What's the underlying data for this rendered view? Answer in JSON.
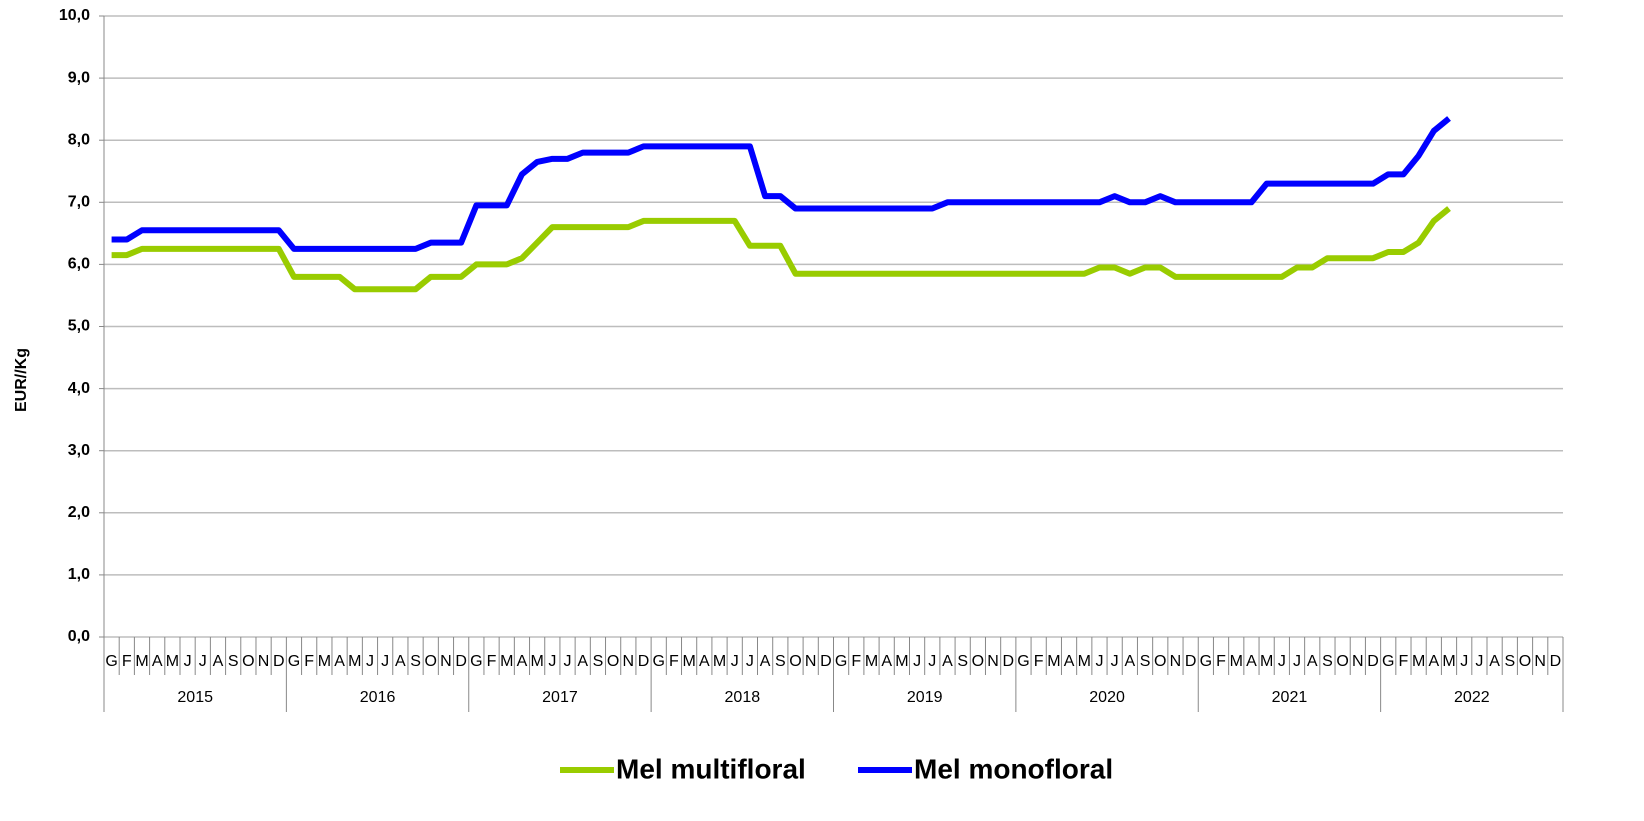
{
  "chart_data": {
    "type": "line",
    "y_label": "EUR//Kg",
    "categories": [
      "G",
      "F",
      "M",
      "A",
      "M",
      "J",
      "J",
      "A",
      "S",
      "O",
      "N",
      "D",
      "G",
      "F",
      "M",
      "A",
      "M",
      "J",
      "J",
      "A",
      "S",
      "O",
      "N",
      "D",
      "G",
      "F",
      "M",
      "A",
      "M",
      "J",
      "J",
      "A",
      "S",
      "O",
      "N",
      "D",
      "G",
      "F",
      "M",
      "A",
      "M",
      "J",
      "J",
      "A",
      "S",
      "O",
      "N",
      "D",
      "G",
      "F",
      "M",
      "A",
      "M",
      "J",
      "J",
      "A",
      "S",
      "O",
      "N",
      "D",
      "G",
      "F",
      "M",
      "A",
      "M",
      "J",
      "J",
      "A",
      "S",
      "O",
      "N",
      "D",
      "G",
      "F",
      "M",
      "A",
      "M",
      "J",
      "J",
      "A",
      "S",
      "O",
      "N",
      "D",
      "G",
      "F",
      "M",
      "A",
      "M",
      "J",
      "J",
      "A",
      "S",
      "O",
      "N",
      "D"
    ],
    "groups": [
      "2015",
      "2016",
      "2017",
      "2018",
      "2019",
      "2020",
      "2021",
      "2022"
    ],
    "series": [
      {
        "name": "Mel multifloral",
        "color": "#99cc00",
        "values": [
          6.15,
          6.15,
          6.25,
          6.25,
          6.25,
          6.25,
          6.25,
          6.25,
          6.25,
          6.25,
          6.25,
          6.25,
          5.8,
          5.8,
          5.8,
          5.8,
          5.6,
          5.6,
          5.6,
          5.6,
          5.6,
          5.8,
          5.8,
          5.8,
          6.0,
          6.0,
          6.0,
          6.1,
          6.35,
          6.6,
          6.6,
          6.6,
          6.6,
          6.6,
          6.6,
          6.7,
          6.7,
          6.7,
          6.7,
          6.7,
          6.7,
          6.7,
          6.3,
          6.3,
          6.3,
          5.85,
          5.85,
          5.85,
          5.85,
          5.85,
          5.85,
          5.85,
          5.85,
          5.85,
          5.85,
          5.85,
          5.85,
          5.85,
          5.85,
          5.85,
          5.85,
          5.85,
          5.85,
          5.85,
          5.85,
          5.95,
          5.95,
          5.85,
          5.95,
          5.95,
          5.8,
          5.8,
          5.8,
          5.8,
          5.8,
          5.8,
          5.8,
          5.8,
          5.95,
          5.95,
          6.1,
          6.1,
          6.1,
          6.1,
          6.2,
          6.2,
          6.35,
          6.7,
          6.9,
          null,
          null,
          null,
          null,
          null,
          null,
          null
        ]
      },
      {
        "name": "Mel monofloral",
        "color": "#0000ff",
        "values": [
          6.4,
          6.4,
          6.55,
          6.55,
          6.55,
          6.55,
          6.55,
          6.55,
          6.55,
          6.55,
          6.55,
          6.55,
          6.25,
          6.25,
          6.25,
          6.25,
          6.25,
          6.25,
          6.25,
          6.25,
          6.25,
          6.35,
          6.35,
          6.35,
          6.95,
          6.95,
          6.95,
          7.45,
          7.65,
          7.7,
          7.7,
          7.8,
          7.8,
          7.8,
          7.8,
          7.9,
          7.9,
          7.9,
          7.9,
          7.9,
          7.9,
          7.9,
          7.9,
          7.1,
          7.1,
          6.9,
          6.9,
          6.9,
          6.9,
          6.9,
          6.9,
          6.9,
          6.9,
          6.9,
          6.9,
          7.0,
          7.0,
          7.0,
          7.0,
          7.0,
          7.0,
          7.0,
          7.0,
          7.0,
          7.0,
          7.0,
          7.1,
          7.0,
          7.0,
          7.1,
          7.0,
          7.0,
          7.0,
          7.0,
          7.0,
          7.0,
          7.3,
          7.3,
          7.3,
          7.3,
          7.3,
          7.3,
          7.3,
          7.3,
          7.45,
          7.45,
          7.75,
          8.15,
          8.35,
          null,
          null,
          null,
          null,
          null,
          null,
          null
        ]
      }
    ],
    "ylim": [
      0,
      10
    ],
    "yticks": [
      {
        "value": 0,
        "label": "0,0"
      },
      {
        "value": 1,
        "label": "1,0"
      },
      {
        "value": 2,
        "label": "2,0"
      },
      {
        "value": 3,
        "label": "3,0"
      },
      {
        "value": 4,
        "label": "4,0"
      },
      {
        "value": 5,
        "label": "5,0"
      },
      {
        "value": 6,
        "label": "6,0"
      },
      {
        "value": 7,
        "label": "7,0"
      },
      {
        "value": 8,
        "label": "8,0"
      },
      {
        "value": 9,
        "label": "9,0"
      },
      {
        "value": 10,
        "label": "10,0"
      }
    ],
    "grid": true,
    "legend": "bottom"
  }
}
